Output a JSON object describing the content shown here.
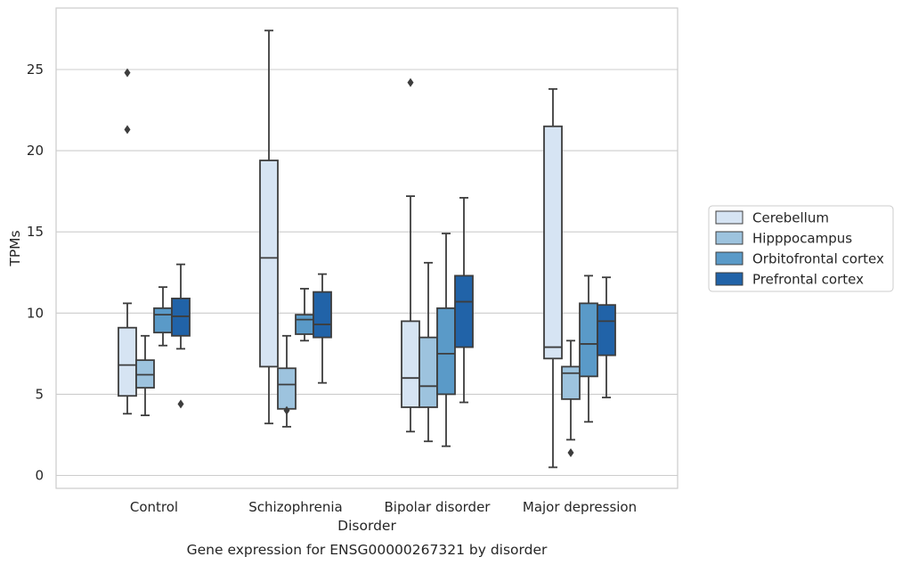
{
  "chart_data": {
    "type": "box",
    "title": "Gene expression for ENSG00000267321 by disorder",
    "xlabel": "Disorder",
    "ylabel": "TPMs",
    "ylim": [
      -0.8,
      28.2
    ],
    "yticks": [
      0,
      5,
      10,
      15,
      20,
      25
    ],
    "grid": "horizontal",
    "legend_position": "right",
    "categories": [
      "Control",
      "Schizophrenia",
      "Bipolar disorder",
      "Major depression"
    ],
    "series": [
      {
        "name": "Cerebellum",
        "color": "#d6e4f3",
        "boxes": [
          {
            "whislo": 3.8,
            "q1": 4.9,
            "med": 6.8,
            "q3": 9.1,
            "whishi": 10.6,
            "fliers": [
              21.3,
              24.8
            ]
          },
          {
            "whislo": 3.2,
            "q1": 6.7,
            "med": 13.4,
            "q3": 19.4,
            "whishi": 27.4,
            "fliers": []
          },
          {
            "whislo": 2.7,
            "q1": 4.2,
            "med": 6.0,
            "q3": 9.5,
            "whishi": 17.2,
            "fliers": [
              24.2
            ]
          },
          {
            "whislo": 0.5,
            "q1": 7.2,
            "med": 7.9,
            "q3": 21.5,
            "whishi": 23.8,
            "fliers": []
          }
        ]
      },
      {
        "name": "Hipppocampus",
        "color": "#9dc3de",
        "boxes": [
          {
            "whislo": 3.7,
            "q1": 5.4,
            "med": 6.2,
            "q3": 7.1,
            "whishi": 8.6,
            "fliers": []
          },
          {
            "whislo": 3.0,
            "q1": 4.1,
            "med": 5.6,
            "q3": 6.6,
            "whishi": 8.6,
            "fliers": [
              4.0
            ]
          },
          {
            "whislo": 2.1,
            "q1": 4.2,
            "med": 5.5,
            "q3": 8.5,
            "whishi": 13.1,
            "fliers": []
          },
          {
            "whislo": 2.2,
            "q1": 4.7,
            "med": 6.3,
            "q3": 6.7,
            "whishi": 8.3,
            "fliers": [
              1.4
            ]
          }
        ]
      },
      {
        "name": "Orbitofrontal cortex",
        "color": "#5a9ac8",
        "boxes": [
          {
            "whislo": 8.0,
            "q1": 8.8,
            "med": 9.9,
            "q3": 10.3,
            "whishi": 11.6,
            "fliers": []
          },
          {
            "whislo": 8.3,
            "q1": 8.7,
            "med": 9.6,
            "q3": 9.9,
            "whishi": 11.5,
            "fliers": []
          },
          {
            "whislo": 1.8,
            "q1": 5.0,
            "med": 7.5,
            "q3": 10.3,
            "whishi": 14.9,
            "fliers": []
          },
          {
            "whislo": 3.3,
            "q1": 6.1,
            "med": 8.1,
            "q3": 10.6,
            "whishi": 12.3,
            "fliers": []
          }
        ]
      },
      {
        "name": "Prefrontal cortex",
        "color": "#2163a8",
        "boxes": [
          {
            "whislo": 7.8,
            "q1": 8.6,
            "med": 9.8,
            "q3": 10.9,
            "whishi": 13.0,
            "fliers": [
              4.4
            ]
          },
          {
            "whislo": 5.7,
            "q1": 8.5,
            "med": 9.3,
            "q3": 11.3,
            "whishi": 12.4,
            "fliers": []
          },
          {
            "whislo": 4.5,
            "q1": 7.9,
            "med": 10.7,
            "q3": 12.3,
            "whishi": 17.1,
            "fliers": []
          },
          {
            "whislo": 4.8,
            "q1": 7.4,
            "med": 9.5,
            "q3": 10.5,
            "whishi": 12.2,
            "fliers": []
          }
        ]
      }
    ]
  }
}
